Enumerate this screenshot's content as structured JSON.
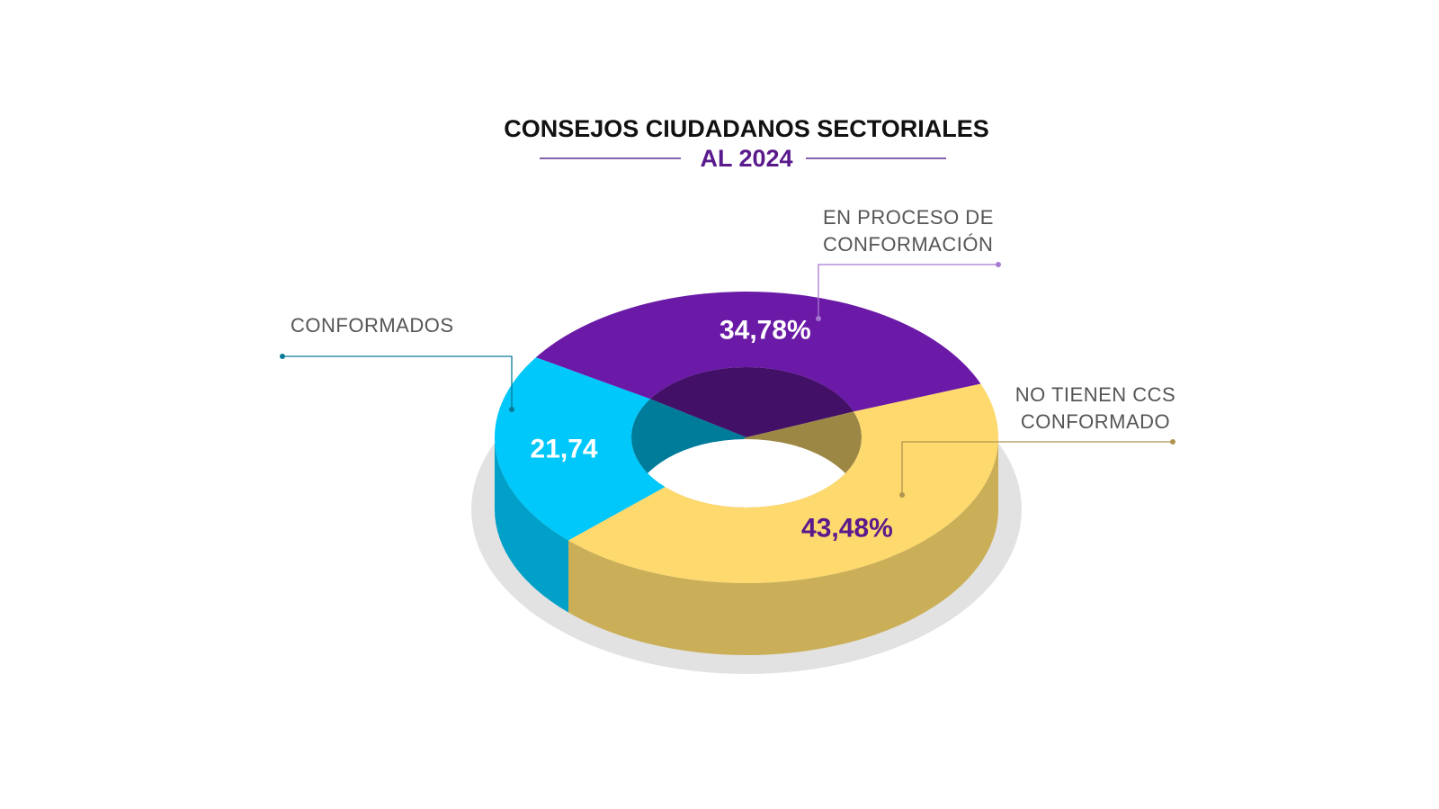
{
  "chart_data": {
    "type": "pie",
    "donut": true,
    "title": "CONSEJOS CIUDADANOS SECTORIALES",
    "subtitle": "AL 2024",
    "categories": [
      "CONFORMADOS",
      "EN PROCESO DE CONFORMACIÓN",
      "NO TIENEN CCS CONFORMADO"
    ],
    "values": [
      21.74,
      34.78,
      43.48
    ],
    "value_labels": [
      "21,74",
      "34,78%",
      "43,48%"
    ],
    "colors": [
      "#00c8fa",
      "#6a1aa6",
      "#fdd96e"
    ],
    "value_label_colors": [
      "#ffffff",
      "#ffffff",
      "#5a1a8c"
    ]
  }
}
